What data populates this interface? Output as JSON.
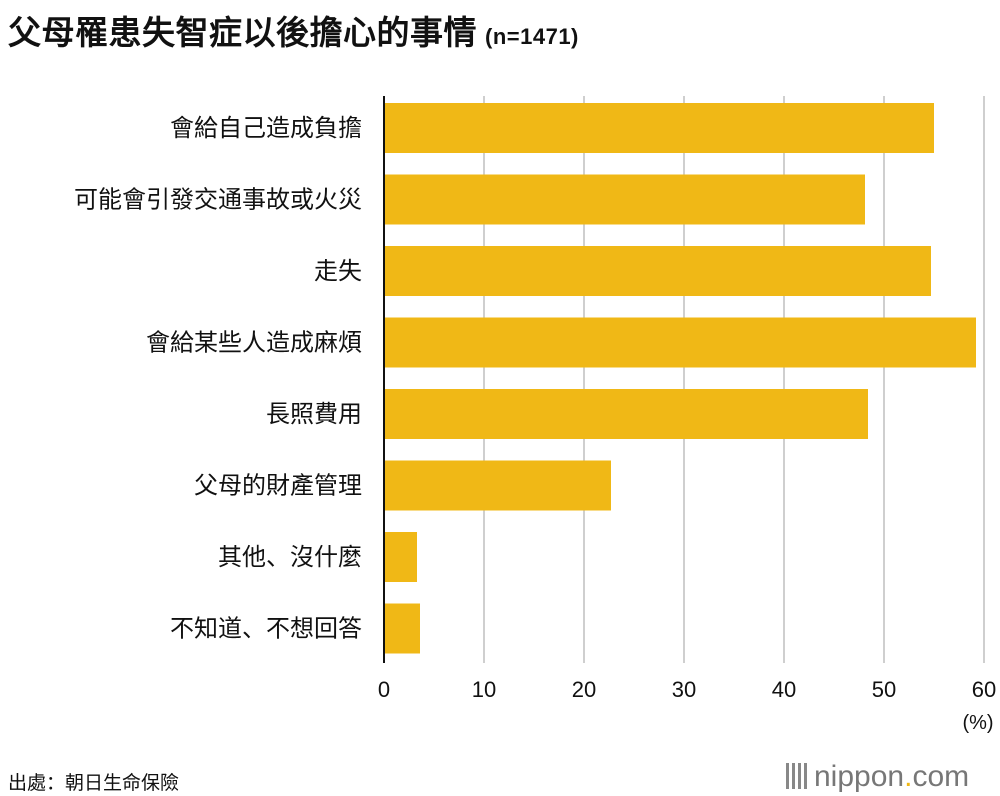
{
  "title": "父母罹患失智症以後擔心的事情",
  "sample_size": "(n=1471)",
  "source": "出處：朝日生命保險",
  "logo": {
    "name": "nippon",
    "dot": ".",
    "suffix": "com"
  },
  "bar_color": "#f0b816",
  "chart_data": {
    "type": "bar",
    "orientation": "horizontal",
    "categories": [
      "會給自己造成負擔",
      "可能會引發交通事故或火災",
      "走失",
      "會給某些人造成麻煩",
      "長照費用",
      "父母的財產管理",
      "其他、沒什麼",
      "不知道、不想回答"
    ],
    "values": [
      55.0,
      48.1,
      54.7,
      59.2,
      48.4,
      22.7,
      3.3,
      3.6
    ],
    "xlim": [
      0,
      60
    ],
    "xticks": [
      0,
      10,
      20,
      30,
      40,
      50,
      60
    ],
    "unit_label": "(%)",
    "grid": true
  }
}
